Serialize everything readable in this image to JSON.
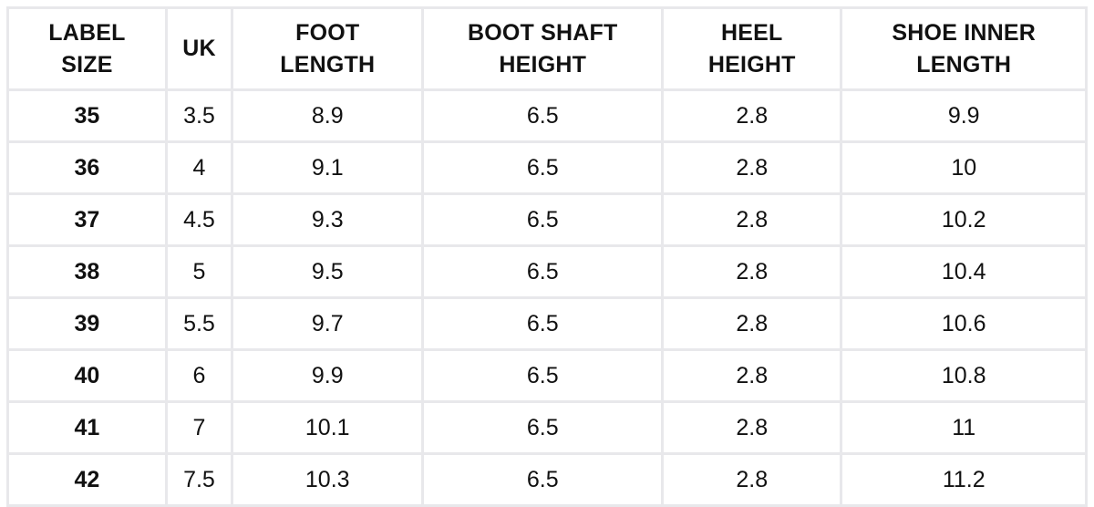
{
  "colors": {
    "background": "#ffffff",
    "border": "#e8e8eb",
    "text": "#111111"
  },
  "table": {
    "header_display": [
      "LABEL\nSIZE",
      "UK",
      "FOOT\nLENGTH",
      "BOOT SHAFT\nHEIGHT",
      "HEEL\nHEIGHT",
      "SHOE INNER\nLENGTH"
    ]
  },
  "chart_data": {
    "type": "table",
    "title": "",
    "columns": [
      "LABEL SIZE",
      "UK",
      "FOOT LENGTH",
      "BOOT SHAFT HEIGHT",
      "HEEL HEIGHT",
      "SHOE INNER LENGTH"
    ],
    "rows": [
      [
        35,
        3.5,
        8.9,
        6.5,
        2.8,
        9.9
      ],
      [
        36,
        4,
        9.1,
        6.5,
        2.8,
        10
      ],
      [
        37,
        4.5,
        9.3,
        6.5,
        2.8,
        10.2
      ],
      [
        38,
        5,
        9.5,
        6.5,
        2.8,
        10.4
      ],
      [
        39,
        5.5,
        9.7,
        6.5,
        2.8,
        10.6
      ],
      [
        40,
        6,
        9.9,
        6.5,
        2.8,
        10.8
      ],
      [
        41,
        7,
        10.1,
        6.5,
        2.8,
        11
      ],
      [
        42,
        7.5,
        10.3,
        6.5,
        2.8,
        11.2
      ]
    ]
  }
}
